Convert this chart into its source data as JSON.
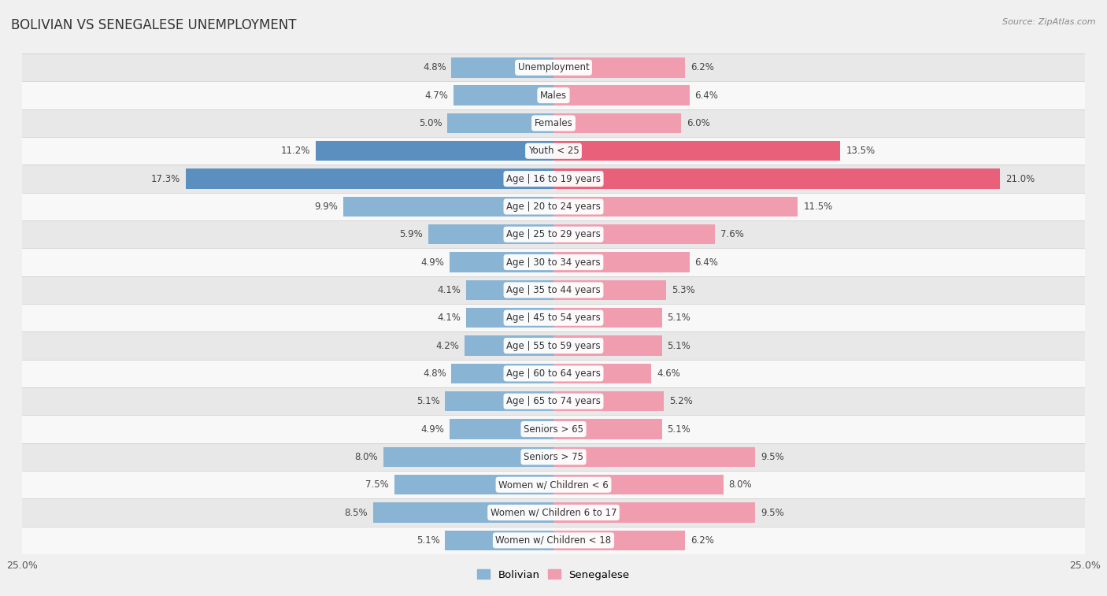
{
  "title": "BOLIVIAN VS SENEGALESE UNEMPLOYMENT",
  "source": "Source: ZipAtlas.com",
  "categories": [
    "Unemployment",
    "Males",
    "Females",
    "Youth < 25",
    "Age | 16 to 19 years",
    "Age | 20 to 24 years",
    "Age | 25 to 29 years",
    "Age | 30 to 34 years",
    "Age | 35 to 44 years",
    "Age | 45 to 54 years",
    "Age | 55 to 59 years",
    "Age | 60 to 64 years",
    "Age | 65 to 74 years",
    "Seniors > 65",
    "Seniors > 75",
    "Women w/ Children < 6",
    "Women w/ Children 6 to 17",
    "Women w/ Children < 18"
  ],
  "bolivian": [
    4.8,
    4.7,
    5.0,
    11.2,
    17.3,
    9.9,
    5.9,
    4.9,
    4.1,
    4.1,
    4.2,
    4.8,
    5.1,
    4.9,
    8.0,
    7.5,
    8.5,
    5.1
  ],
  "senegalese": [
    6.2,
    6.4,
    6.0,
    13.5,
    21.0,
    11.5,
    7.6,
    6.4,
    5.3,
    5.1,
    5.1,
    4.6,
    5.2,
    5.1,
    9.5,
    8.0,
    9.5,
    6.2
  ],
  "bolivian_color": "#8ab4d4",
  "senegalese_color": "#f09db0",
  "bolivian_highlight_color": "#5b8fbf",
  "senegalese_highlight_color": "#e8607a",
  "highlight_indices": [
    3,
    4
  ],
  "bar_height": 0.72,
  "xlim": 25.0,
  "bg_color": "#f0f0f0",
  "row_colors": [
    "#e8e8e8",
    "#f8f8f8"
  ],
  "label_bg": "#ffffff",
  "legend_bolivian": "Bolivian",
  "legend_senegalese": "Senegalese",
  "value_fontsize": 8.5,
  "cat_fontsize": 8.5,
  "title_fontsize": 12,
  "source_fontsize": 8
}
